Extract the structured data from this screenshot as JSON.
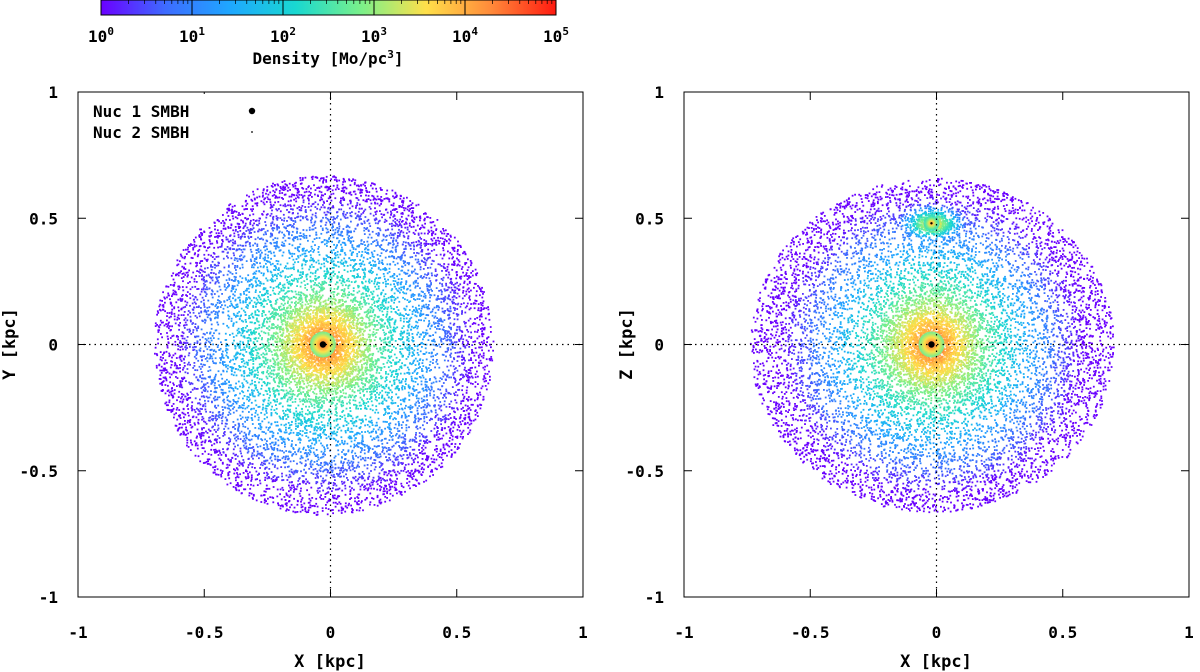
{
  "colorbar": {
    "label_text": "Density [Mo/pc",
    "label_exp": "3",
    "label_close": "]",
    "ticks": [
      {
        "base": "10",
        "exp": "0"
      },
      {
        "base": "10",
        "exp": "1"
      },
      {
        "base": "10",
        "exp": "2"
      },
      {
        "base": "10",
        "exp": "3"
      },
      {
        "base": "10",
        "exp": "4"
      },
      {
        "base": "10",
        "exp": "5"
      }
    ],
    "range_log": [
      0,
      5
    ],
    "colors": [
      "#6a00ff",
      "#3d6cff",
      "#1ea8ff",
      "#19d8d0",
      "#7af08a",
      "#ffe04a",
      "#ff8a3a",
      "#ff1a10"
    ]
  },
  "legend": {
    "entries": [
      {
        "label": "Nuc 1 SMBH",
        "marker": "large-dot"
      },
      {
        "label": "Nuc 2 SMBH",
        "marker": "small-dot"
      }
    ]
  },
  "chart_data": [
    {
      "type": "scatter",
      "title": "",
      "xlabel": "X [kpc]",
      "ylabel": "Y [kpc]",
      "xlim": [
        -1,
        1
      ],
      "ylim": [
        -1,
        1
      ],
      "xticks": [
        "-1",
        "-0.5",
        "0",
        "0.5",
        "1"
      ],
      "yticks": [
        "-1",
        "-0.5",
        "0",
        "0.5",
        "1"
      ],
      "grid": "dotted lines at x=0 and y=0",
      "colorscale": "log density, 10^0 to 10^5 Mo/pc^3",
      "components": [
        {
          "name": "main nucleus",
          "center": [
            -0.03,
            0.0
          ],
          "peak_log_density": 4.8,
          "radial_scale_kpc": 0.28
        }
      ],
      "smbh": [
        {
          "name": "Nuc 1 SMBH",
          "x": -0.03,
          "y": 0.0
        }
      ]
    },
    {
      "type": "scatter",
      "title": "",
      "xlabel": "X [kpc]",
      "ylabel": "Z [kpc]",
      "xlim": [
        -1,
        1
      ],
      "ylim": [
        -1,
        1
      ],
      "xticks": [
        "-1",
        "-0.5",
        "0",
        "0.5",
        "1"
      ],
      "yticks": [
        "-1",
        "-0.5",
        "0",
        "0.5",
        "1"
      ],
      "grid": "dotted lines at x=0 and y=0",
      "colorscale": "log density, 10^0 to 10^5 Mo/pc^3",
      "components": [
        {
          "name": "main nucleus",
          "center": [
            -0.02,
            0.0
          ],
          "peak_log_density": 4.8,
          "radial_scale_kpc": 0.3
        },
        {
          "name": "secondary nucleus",
          "center": [
            -0.02,
            0.48
          ],
          "peak_log_density": 4.5,
          "radial_scale_kpc": 0.05
        }
      ],
      "smbh": [
        {
          "name": "Nuc 1 SMBH",
          "x": -0.02,
          "y": 0.0
        },
        {
          "name": "Nuc 2 SMBH",
          "x": -0.02,
          "y": 0.48
        }
      ]
    }
  ]
}
